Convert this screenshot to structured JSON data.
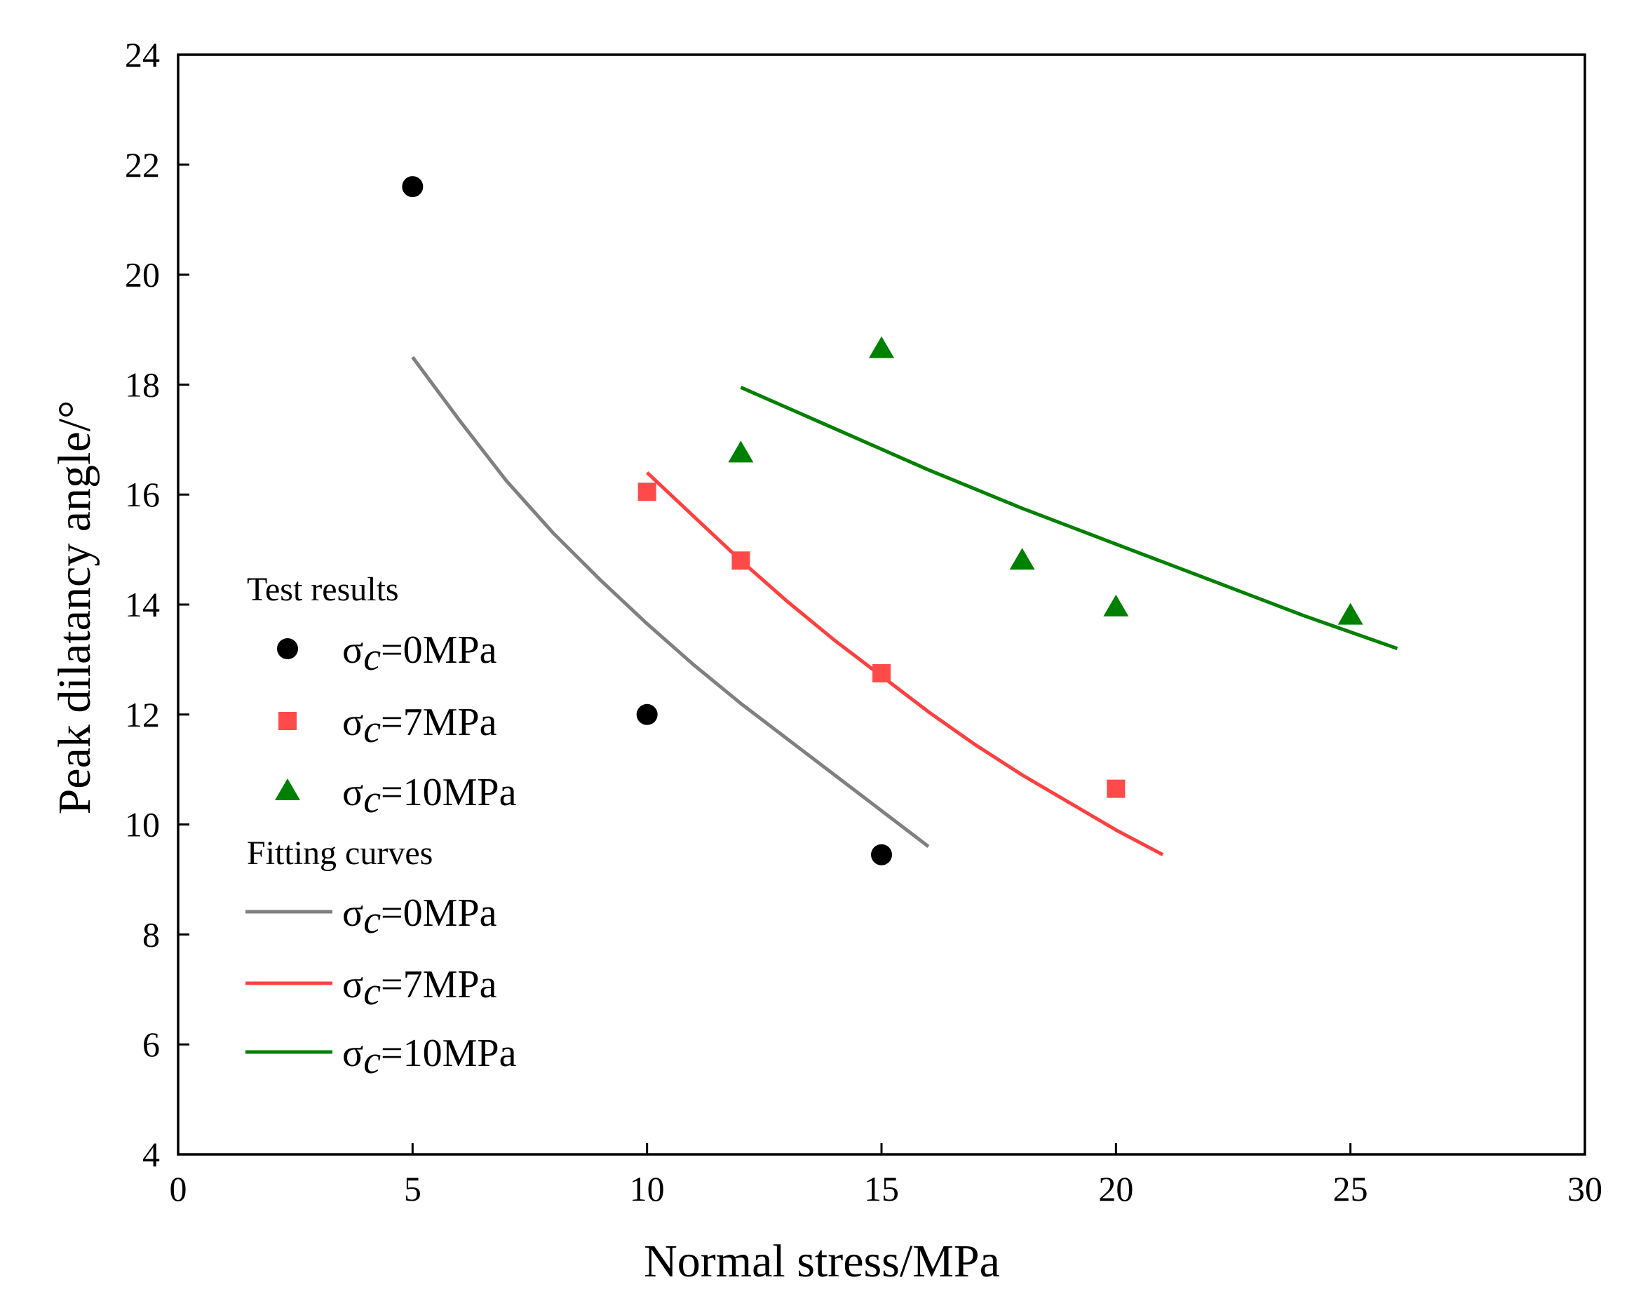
{
  "chart_data": {
    "type": "scatter",
    "title": "",
    "xlabel": "Normal stress/MPa",
    "ylabel": "Peak dilatancy angle/°",
    "xlim": [
      0,
      30
    ],
    "ylim": [
      4,
      24
    ],
    "xticks": [
      0,
      5,
      10,
      15,
      20,
      25,
      30
    ],
    "yticks": [
      4,
      6,
      8,
      10,
      12,
      14,
      16,
      18,
      20,
      22,
      24
    ],
    "grid": false,
    "legend_position": "left",
    "legend": {
      "test_heading": "Test results",
      "fit_heading": "Fitting curves"
    },
    "series": [
      {
        "name": "σc=0MPa",
        "sigma": "σ",
        "sub": "c",
        "rest": "=0MPa",
        "color": "#000000",
        "marker": "circle",
        "x": [
          5,
          10,
          15
        ],
        "y": [
          21.6,
          12.0,
          9.45
        ],
        "fit": {
          "color": "#808080",
          "x": [
            5,
            6,
            7,
            8,
            9,
            10,
            11,
            12,
            13,
            14,
            15,
            16
          ],
          "y": [
            18.5,
            17.35,
            16.25,
            15.3,
            14.45,
            13.65,
            12.9,
            12.2,
            11.55,
            10.9,
            10.25,
            9.6
          ]
        }
      },
      {
        "name": "σc=7MPa",
        "sigma": "σ",
        "sub": "c",
        "rest": "=7MPa",
        "color": "#ff4a4a",
        "marker": "square",
        "x": [
          10,
          12,
          15,
          20
        ],
        "y": [
          16.05,
          14.8,
          12.75,
          10.65
        ],
        "fit": {
          "color": "#ff4040",
          "x": [
            10,
            11,
            12,
            13,
            14,
            15,
            16,
            17,
            18,
            19,
            20,
            21
          ],
          "y": [
            16.4,
            15.6,
            14.8,
            14.05,
            13.35,
            12.7,
            12.05,
            11.45,
            10.9,
            10.4,
            9.9,
            9.45
          ]
        }
      },
      {
        "name": "σc=10MPa",
        "sigma": "σ",
        "sub": "c",
        "rest": "=10MPa",
        "color": "#008000",
        "marker": "triangle",
        "x": [
          12,
          15,
          18,
          20,
          25
        ],
        "y": [
          16.75,
          18.65,
          14.8,
          13.95,
          13.8
        ],
        "fit": {
          "color": "#008000",
          "x": [
            12,
            14,
            16,
            18,
            20,
            22,
            24,
            26
          ],
          "y": [
            17.95,
            17.2,
            16.45,
            15.75,
            15.1,
            14.45,
            13.8,
            13.2
          ]
        }
      }
    ]
  }
}
